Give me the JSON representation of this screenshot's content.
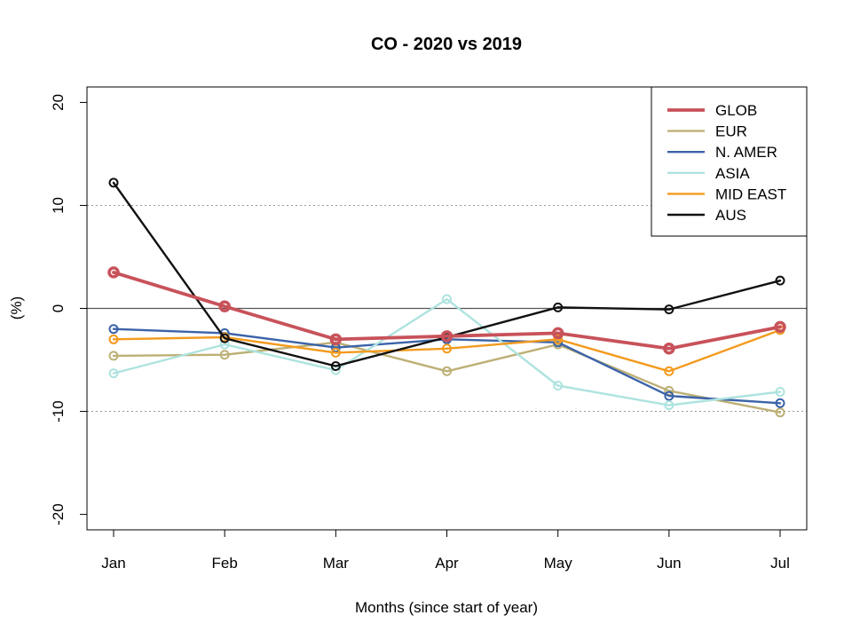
{
  "chart_data": {
    "type": "line",
    "title": "CO - 2020 vs 2019",
    "xlabel": "Months (since start of year)",
    "ylabel": "(%)",
    "categories": [
      "Jan",
      "Feb",
      "Mar",
      "Apr",
      "May",
      "Jun",
      "Jul"
    ],
    "ylim": [
      -21.5,
      21.5
    ],
    "yticks": [
      -20,
      -10,
      0,
      10,
      20
    ],
    "ytick_labels": [
      "-20",
      "-10",
      "0",
      "10",
      "20"
    ],
    "gridlines": [
      -10,
      10
    ],
    "zero_line": 0,
    "legend_position": "top-right",
    "series": [
      {
        "name": "GLOB",
        "color": "#c8525a",
        "emphasis": true,
        "values": [
          3.5,
          0.2,
          -3.0,
          -2.7,
          -2.4,
          -3.9,
          -1.8
        ]
      },
      {
        "name": "EUR",
        "color": "#bdb076",
        "values": [
          -4.6,
          -4.5,
          -3.3,
          -6.1,
          -3.5,
          -8.0,
          -10.1
        ]
      },
      {
        "name": "N. AMER",
        "color": "#3b63a8",
        "values": [
          -2.0,
          -2.4,
          -3.8,
          -3.0,
          -3.3,
          -8.5,
          -9.2
        ]
      },
      {
        "name": "ASIA",
        "color": "#aee3df",
        "values": [
          -6.3,
          -3.5,
          -6.0,
          0.9,
          -7.5,
          -9.4,
          -8.1
        ]
      },
      {
        "name": "MID EAST",
        "color": "#f39a1e",
        "values": [
          -3.0,
          -2.8,
          -4.3,
          -3.9,
          -3.0,
          -6.1,
          -2.1
        ]
      },
      {
        "name": "AUS",
        "color": "#111111",
        "values": [
          12.2,
          -2.9,
          -5.6,
          -2.8,
          0.1,
          -0.1,
          2.7
        ]
      }
    ]
  }
}
